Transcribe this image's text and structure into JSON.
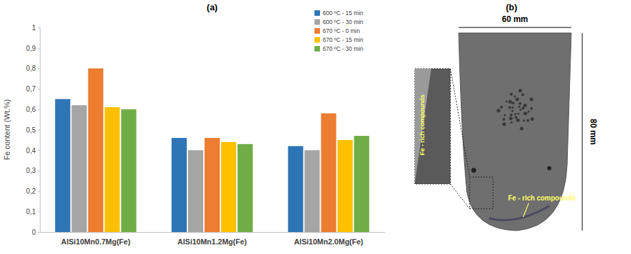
{
  "chart_data": {
    "type": "bar",
    "title": "(a)",
    "y_label": "Fe content  (Wt.%)",
    "categories": [
      "AlSi10Mn0.7Mg(Fe)",
      "AlSi10Mn1.2Mg(Fe)",
      "AlSi10Mn2.0Mg(Fe)"
    ],
    "series": [
      {
        "name": "600 ºC - 15 min",
        "color": "#2e75b6",
        "values": [
          0.65,
          0.46,
          0.42
        ]
      },
      {
        "name": "600 ºC - 30 min",
        "color": "#a5a5a5",
        "values": [
          0.62,
          0.4,
          0.4
        ]
      },
      {
        "name": "670 ºC - 0 min",
        "color": "#ed7d31",
        "values": [
          0.8,
          0.46,
          0.58
        ]
      },
      {
        "name": "670 ºC - 15 min",
        "color": "#ffc000",
        "values": [
          0.61,
          0.44,
          0.45
        ]
      },
      {
        "name": "670 ºC - 30 min",
        "color": "#70ad47",
        "values": [
          0.6,
          0.43,
          0.47
        ]
      }
    ],
    "ylim": [
      0,
      1
    ],
    "yticks": [
      0,
      {
        "value": 0.1,
        "label": "0,1"
      },
      {
        "value": 0.2,
        "label": "0,2"
      },
      {
        "value": 0.3,
        "label": "0,3"
      },
      {
        "value": 0.4,
        "label": "0,4"
      },
      {
        "value": 0.5,
        "label": "0,5"
      },
      {
        "value": 0.6,
        "label": "0,6"
      },
      {
        "value": 0.7,
        "label": "0,7"
      },
      {
        "value": 0.8,
        "label": "0,8"
      },
      {
        "value": 0.9,
        "label": "0,9"
      },
      1
    ],
    "grid": false,
    "legend": "top-right"
  },
  "panel_b": {
    "title": "(b)",
    "width_label": "60 mm",
    "height_label": "80 mm",
    "inset_label": "Fe - rich compounds",
    "bottom_label": "Fe - rich compounds"
  }
}
